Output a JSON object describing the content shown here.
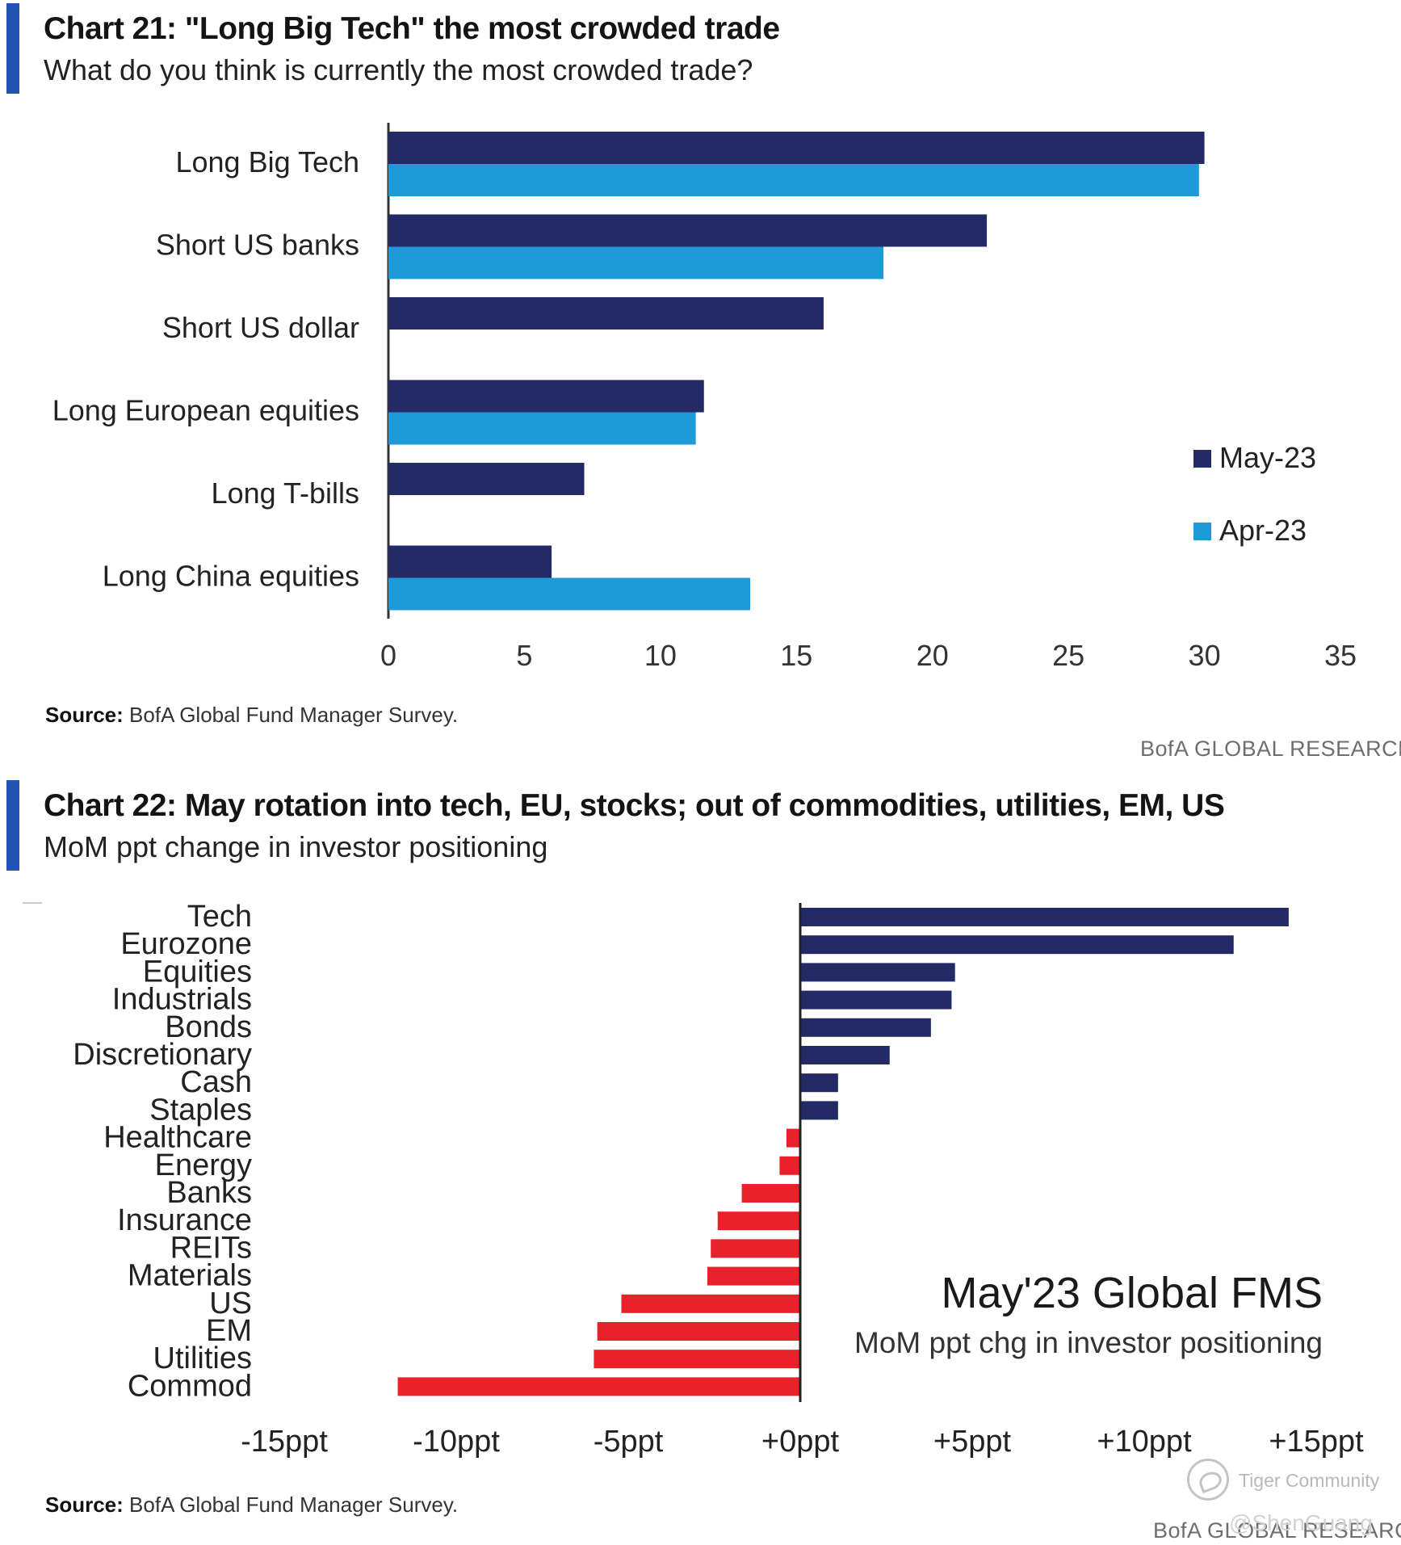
{
  "chart_data": [
    {
      "type": "bar",
      "orientation": "horizontal",
      "title": "Chart 21: \"Long Big Tech\" the most crowded trade",
      "subtitle": "What do you think is currently the most crowded trade?",
      "categories": [
        "Long Big Tech",
        "Short US banks",
        "Short US dollar",
        "Long European equities",
        "Long T-bills",
        "Long China equities"
      ],
      "series": [
        {
          "name": "May-23",
          "color": "#232a66",
          "values": [
            30,
            22,
            16,
            11.6,
            7.2,
            6
          ]
        },
        {
          "name": "Apr-23",
          "color": "#1e9ad8",
          "values": [
            29.8,
            18.2,
            null,
            11.3,
            null,
            13.3
          ]
        }
      ],
      "xlim": [
        0,
        35
      ],
      "xticks": [
        "0",
        "5",
        "10",
        "15",
        "20",
        "25",
        "30",
        "35"
      ],
      "legend_position": "right",
      "source_label": "Source:",
      "source_text": "BofA Global Fund Manager Survey.",
      "brand": "BofA GLOBAL RESEARCH"
    },
    {
      "type": "bar",
      "orientation": "horizontal",
      "title": "Chart 22: May rotation into tech, EU, stocks; out of commodities, utilities, EM, US",
      "subtitle": "MoM ppt change in investor positioning",
      "categories": [
        "Tech",
        "Eurozone",
        "Equities",
        "Industrials",
        "Bonds",
        "Discretionary",
        "Cash",
        "Staples",
        "Healthcare",
        "Energy",
        "Banks",
        "Insurance",
        "REITs",
        "Materials",
        "US",
        "EM",
        "Utilities",
        "Commod"
      ],
      "values": [
        14.2,
        12.6,
        4.5,
        4.4,
        3.8,
        2.6,
        1.1,
        1.1,
        -0.4,
        -0.6,
        -1.7,
        -2.4,
        -2.6,
        -2.7,
        -5.2,
        -5.9,
        -6.0,
        -11.7
      ],
      "positive_color": "#232a66",
      "negative_color": "#e8212b",
      "xlim": [
        -15,
        15
      ],
      "xticks": [
        "-15ppt",
        "-10ppt",
        "-5ppt",
        "+0ppt",
        "+5ppt",
        "+10ppt",
        "+15ppt"
      ],
      "annotation_title": "May'23 Global FMS",
      "annotation_subtitle": "MoM ppt chg in investor positioning",
      "source_label": "Source:",
      "source_text": "BofA Global Fund Manager Survey.",
      "brand": "BofA GLOBAL RESEARCH"
    }
  ],
  "watermark": {
    "community": "Tiger Community",
    "user": "@ShenGuang"
  }
}
